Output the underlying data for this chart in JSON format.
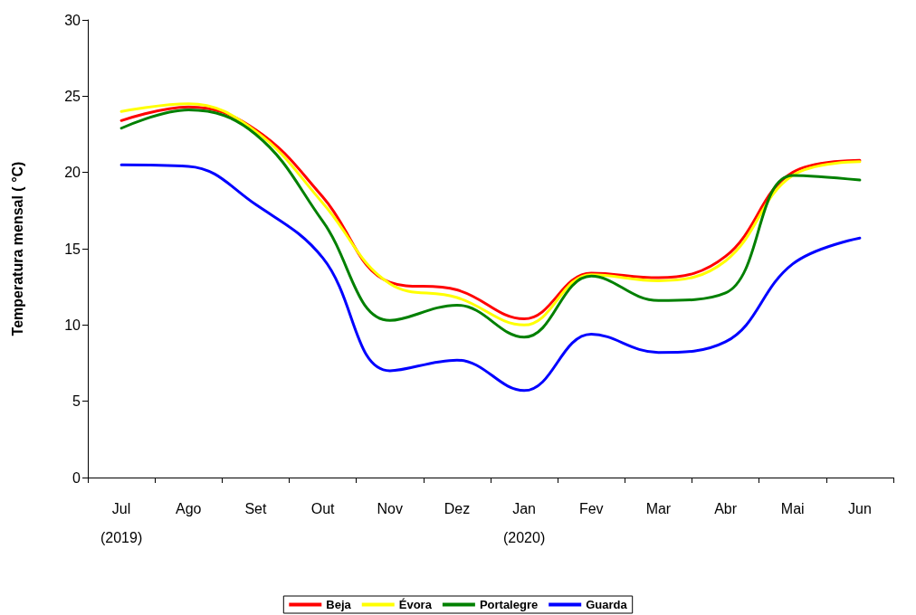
{
  "chart_data": {
    "type": "line",
    "ylabel": "Temperatura mensal ( °C)",
    "categories": [
      "Jul\n(2019)",
      "Ago",
      "Set",
      "Out",
      "Nov",
      "Dez",
      "Jan\n(2020)",
      "Fev",
      "Mar",
      "Abr",
      "Mai",
      "Jun"
    ],
    "ylim": [
      0,
      30
    ],
    "yticks": [
      0,
      5,
      10,
      15,
      20,
      25,
      30
    ],
    "grid": false,
    "legend": "bottom",
    "marker": "none",
    "line_style": "solid",
    "series": [
      {
        "name": "Beja",
        "color": "#ff0000",
        "values": [
          23.4,
          24.3,
          22.8,
          18.4,
          12.8,
          12.3,
          10.4,
          13.4,
          13.1,
          14.5,
          20.0,
          20.8
        ]
      },
      {
        "name": "Évora",
        "color": "#ffff00",
        "values": [
          24.0,
          24.5,
          22.7,
          18.0,
          12.7,
          11.8,
          10.0,
          13.3,
          12.9,
          14.2,
          19.8,
          20.7
        ]
      },
      {
        "name": "Portalegre",
        "color": "#008000",
        "values": [
          22.9,
          24.1,
          22.5,
          16.8,
          10.3,
          11.3,
          9.2,
          13.2,
          11.6,
          12.1,
          19.8,
          19.5
        ]
      },
      {
        "name": "Guarda",
        "color": "#0000ff",
        "values": [
          20.5,
          20.4,
          17.9,
          14.4,
          7.0,
          7.7,
          5.7,
          9.4,
          8.2,
          8.9,
          14.0,
          15.7
        ]
      }
    ]
  }
}
